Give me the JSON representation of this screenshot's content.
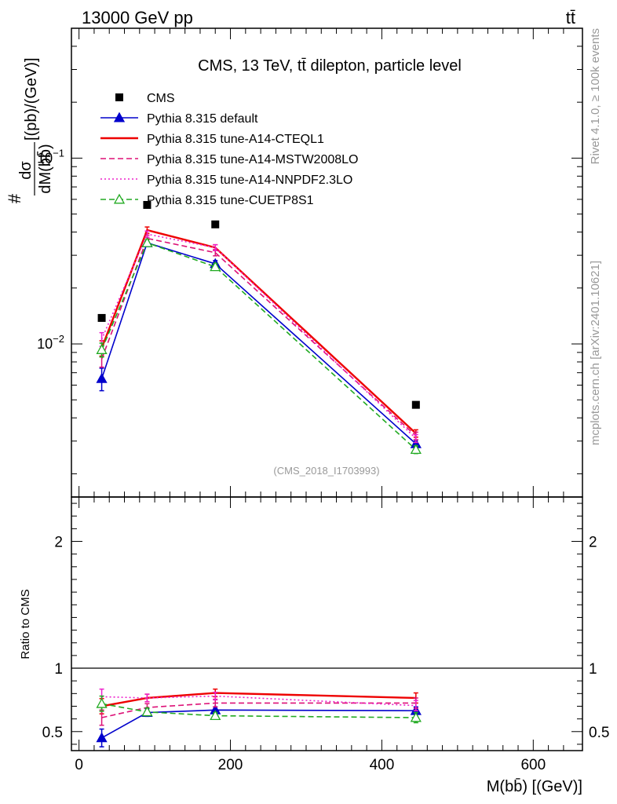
{
  "header": {
    "left": "13000 GeV pp",
    "right": "tt̄"
  },
  "side_labels": {
    "rivet": "Rivet 4.1.0, ≥ 100k events",
    "mcplots": "mcplots.cern.ch [arXiv:2401.10621]"
  },
  "chart_data": [
    {
      "type": "line",
      "title": "CMS, 13 TeV, tt̄ dilepton, particle level",
      "watermark": "(CMS_2018_I1703993)",
      "ylabel": "#dσ/dM(bb̄) [(pb)/(GeV)]",
      "ylabel_parts": {
        "hash": "#",
        "numerator": "dσ",
        "denominator": "dM(bb̄)",
        "units": "[(pb)/(GeV)]"
      },
      "yscale": "log",
      "ylim": [
        0.0015,
        0.5
      ],
      "xlim": [
        -10,
        665
      ],
      "y_ticks": [
        {
          "value": 0.1,
          "base": "10",
          "exp": "−1"
        },
        {
          "value": 0.01,
          "base": "10",
          "exp": "−2"
        }
      ],
      "legend_position": "top-left",
      "x": [
        30,
        90,
        180,
        445
      ],
      "data": {
        "name": "CMS",
        "color": "#000000",
        "values": [
          0.0138,
          0.056,
          0.044,
          0.0047
        ]
      },
      "series": [
        {
          "name": "Pythia 8.315 default",
          "color": "#0000cc",
          "style": "solid",
          "marker": "triangle-filled",
          "values": [
            0.0065,
            0.035,
            0.027,
            0.0029
          ],
          "errors": [
            0.0009,
            0.0014,
            0.0011,
            0.00014
          ]
        },
        {
          "name": "Pythia 8.315 tune-A14-CTEQL1",
          "color": "#ee0000",
          "style": "solid",
          "marker": "none",
          "values": [
            0.0095,
            0.041,
            0.033,
            0.0033
          ],
          "errors": [
            0.0009,
            0.0016,
            0.0012,
            0.00015
          ]
        },
        {
          "name": "Pythia 8.315 tune-A14-MSTW2008LO",
          "color": "#dd1177",
          "style": "dashed",
          "marker": "none",
          "values": [
            0.0083,
            0.037,
            0.031,
            0.0032
          ],
          "errors": [
            0.0008,
            0.0015,
            0.0012,
            0.00015
          ]
        },
        {
          "name": "Pythia 8.315 tune-A14-NNPDF2.3LO",
          "color": "#ee22cc",
          "style": "dotted",
          "marker": "none",
          "values": [
            0.0106,
            0.039,
            0.033,
            0.0031
          ],
          "errors": [
            0.0009,
            0.0015,
            0.0012,
            0.00015
          ]
        },
        {
          "name": "Pythia 8.315 tune-CUETP8S1",
          "color": "#22aa22",
          "style": "dashed",
          "marker": "triangle-open",
          "values": [
            0.0093,
            0.035,
            0.026,
            0.0027
          ],
          "errors": [
            0.0008,
            0.0014,
            0.0011,
            0.00013
          ]
        }
      ]
    },
    {
      "type": "line",
      "ylabel": "Ratio to CMS",
      "xlabel": "M(bb̄) [(GeV)]",
      "ylim": [
        0.35,
        2.35
      ],
      "xlim": [
        -10,
        665
      ],
      "y_ticks": [
        0.5,
        1,
        2
      ],
      "y_tick_labels": [
        "0.5",
        "1",
        "2"
      ],
      "x_ticks": [
        0,
        200,
        400,
        600
      ],
      "x_tick_labels": [
        "0",
        "200",
        "400",
        "600"
      ],
      "reference_line": 1,
      "x": [
        30,
        90,
        180,
        445
      ],
      "series": [
        {
          "name": "Pythia 8.315 default",
          "color": "#0000cc",
          "style": "solid",
          "marker": "triangle-filled",
          "values": [
            0.45,
            0.65,
            0.67,
            0.665
          ],
          "errors": [
            0.07,
            0.03,
            0.025,
            0.03
          ]
        },
        {
          "name": "Pythia 8.315 tune-A14-CTEQL1",
          "color": "#ee0000",
          "style": "solid",
          "marker": "none",
          "values": [
            0.7,
            0.765,
            0.805,
            0.765
          ],
          "errors": [
            0.06,
            0.03,
            0.03,
            0.04
          ]
        },
        {
          "name": "Pythia 8.315 tune-A14-MSTW2008LO",
          "color": "#dd1177",
          "style": "dashed",
          "marker": "none",
          "values": [
            0.61,
            0.69,
            0.725,
            0.725
          ],
          "errors": [
            0.06,
            0.03,
            0.03,
            0.04
          ]
        },
        {
          "name": "Pythia 8.315 tune-A14-NNPDF2.3LO",
          "color": "#ee22cc",
          "style": "dotted",
          "marker": "none",
          "values": [
            0.775,
            0.765,
            0.78,
            0.705
          ],
          "errors": [
            0.06,
            0.03,
            0.03,
            0.04
          ]
        },
        {
          "name": "Pythia 8.315 tune-CUETP8S1",
          "color": "#22aa22",
          "style": "dashed",
          "marker": "triangle-open",
          "values": [
            0.72,
            0.655,
            0.625,
            0.61
          ],
          "errors": [
            0.06,
            0.03,
            0.025,
            0.04
          ]
        }
      ]
    }
  ]
}
